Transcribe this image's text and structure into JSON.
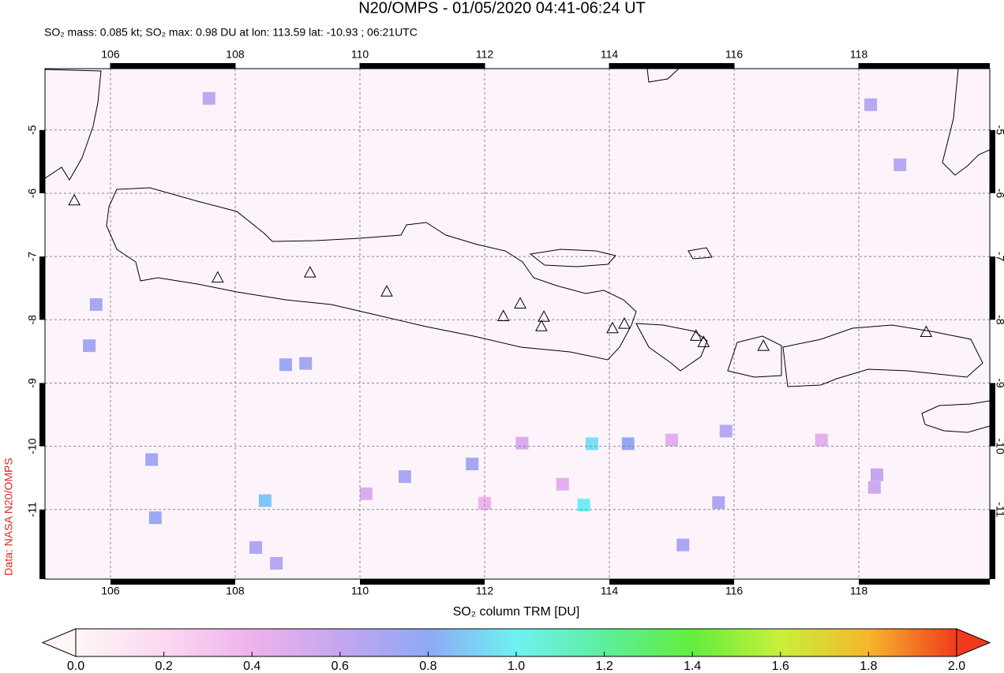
{
  "chart_data": {
    "type": "map",
    "title": "N20/OMPS - 01/05/2020 04:41-06:24 UT",
    "subtitle": "SO₂ mass: 0.085 kt; SO₂ max: 0.98 DU at lon: 113.59 lat: -10.93 ; 06:21UTC",
    "credit": "Data: NASA N20/OMPS",
    "xlim": [
      104.95,
      120.1
    ],
    "ylim": [
      -12.1,
      -4.03
    ],
    "xticks": [
      106,
      108,
      110,
      112,
      114,
      116,
      118
    ],
    "yticks": [
      -5,
      -6,
      -7,
      -8,
      -9,
      -10,
      -11
    ],
    "grid": true,
    "so2": {
      "lon": [
        113.59,
        113.72,
        114.3,
        108.48,
        108.81,
        109.13,
        105.66,
        115.87,
        115.75,
        115.18,
        106.66,
        106.72,
        105.77,
        118.29,
        118.25,
        118.66,
        118.19,
        108.66,
        108.33,
        111.8,
        110.72,
        107.58,
        112.6,
        113.25,
        115.0,
        117.4,
        112.0,
        110.1
      ],
      "lat": [
        -10.93,
        -9.96,
        -9.96,
        -10.86,
        -8.71,
        -8.69,
        -8.41,
        -9.76,
        -10.89,
        -11.56,
        -10.21,
        -11.13,
        -7.76,
        -10.45,
        -10.65,
        -5.55,
        -4.6,
        -11.85,
        -11.6,
        -10.28,
        -10.48,
        -4.5,
        -9.95,
        -10.6,
        -9.9,
        -9.9,
        -10.9,
        -10.75
      ],
      "values": [
        0.98,
        0.95,
        0.78,
        0.88,
        0.75,
        0.72,
        0.72,
        0.65,
        0.68,
        0.7,
        0.72,
        0.75,
        0.7,
        0.6,
        0.55,
        0.65,
        0.65,
        0.65,
        0.68,
        0.72,
        0.7,
        0.62,
        0.5,
        0.45,
        0.45,
        0.45,
        0.4,
        0.5
      ]
    },
    "volcanoes": {
      "x": [
        105.42,
        107.72,
        109.2,
        110.43,
        112.3,
        112.57,
        112.95,
        112.91,
        114.05,
        114.24,
        115.39,
        115.51,
        116.47,
        119.08
      ],
      "y": [
        -6.11,
        -7.33,
        -7.25,
        -7.55,
        -7.94,
        -7.74,
        -7.95,
        -8.1,
        -8.13,
        -8.06,
        -8.25,
        -8.35,
        -8.41,
        -8.19
      ]
    },
    "colorbar": {
      "label": "SO₂ column TRM [DU]",
      "clim": [
        0,
        2
      ],
      "colors": [
        "#fff6f6",
        "#fcd8f0",
        "#eeb2ee",
        "#c5a6ef",
        "#8fa8f5",
        "#6ef2f4",
        "#5cef9c",
        "#62ee3e",
        "#c8f03a",
        "#f7b62b",
        "#f03a1e"
      ],
      "ticks": [
        {
          "value": 0,
          "label": "0.0"
        },
        {
          "value": 0.2,
          "label": "0.2"
        },
        {
          "value": 0.4,
          "label": "0.4"
        },
        {
          "value": 0.6,
          "label": "0.6"
        },
        {
          "value": 0.8,
          "label": "0.8"
        },
        {
          "value": 1.0,
          "label": "1.0"
        },
        {
          "value": 1.2,
          "label": "1.2"
        },
        {
          "value": 1.4,
          "label": "1.4"
        },
        {
          "value": 1.6,
          "label": "1.6"
        },
        {
          "value": 1.8,
          "label": "1.8"
        },
        {
          "value": 2.0,
          "label": "2.0"
        }
      ]
    }
  }
}
